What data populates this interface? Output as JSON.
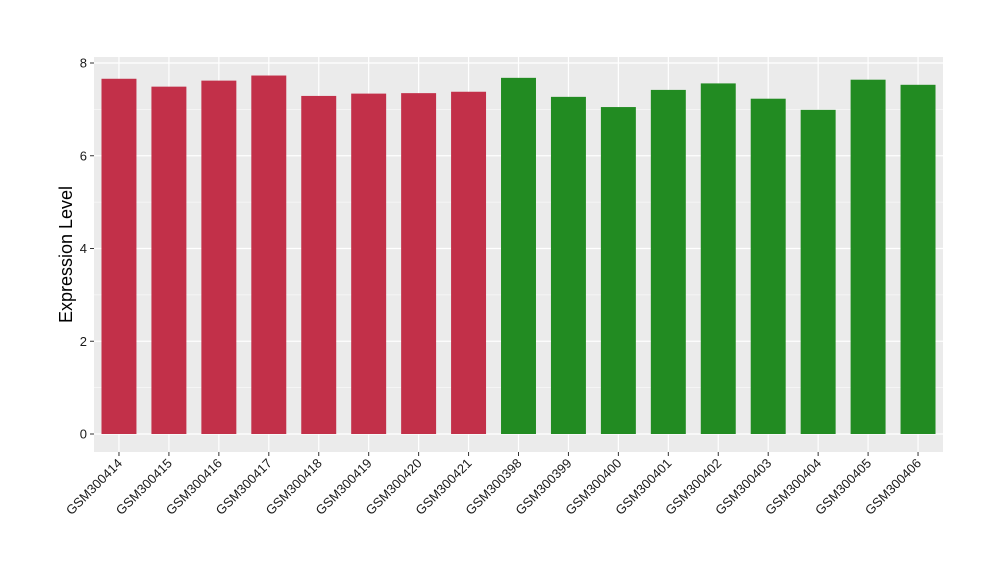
{
  "chart_data": {
    "type": "bar",
    "title": "",
    "xlabel": "",
    "ylabel": "Expression Level",
    "ylim": [
      0,
      8.0
    ],
    "yticks": [
      0,
      2,
      4,
      6,
      8
    ],
    "grid": true,
    "legend": "none",
    "categories": [
      "GSM300414",
      "GSM300415",
      "GSM300416",
      "GSM300417",
      "GSM300418",
      "GSM300419",
      "GSM300420",
      "GSM300421",
      "GSM300398",
      "GSM300399",
      "GSM300400",
      "GSM300401",
      "GSM300402",
      "GSM300403",
      "GSM300404",
      "GSM300405",
      "GSM300406"
    ],
    "values": [
      7.66,
      7.49,
      7.62,
      7.73,
      7.29,
      7.34,
      7.35,
      7.38,
      7.68,
      7.27,
      7.05,
      7.42,
      7.56,
      7.23,
      6.99,
      7.64,
      7.53
    ],
    "bar_colors": [
      "#c23049",
      "#c23049",
      "#c23049",
      "#c23049",
      "#c23049",
      "#c23049",
      "#c23049",
      "#c23049",
      "#228b22",
      "#228b22",
      "#228b22",
      "#228b22",
      "#228b22",
      "#228b22",
      "#228b22",
      "#228b22",
      "#228b22"
    ],
    "panel_background": "#ebebeb",
    "grid_color": "#ffffff"
  }
}
